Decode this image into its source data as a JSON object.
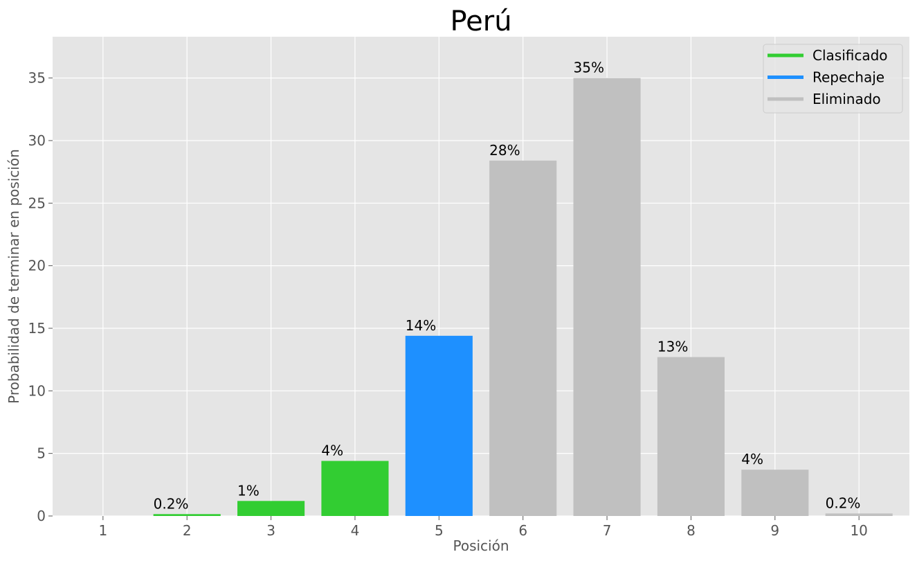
{
  "chart_data": {
    "type": "bar",
    "title": "Perú",
    "xlabel": "Posición",
    "ylabel": "Probabilidad de terminar en posición",
    "categories": [
      "1",
      "2",
      "3",
      "4",
      "5",
      "6",
      "7",
      "8",
      "9",
      "10"
    ],
    "values": [
      0,
      0.15,
      1.2,
      4.4,
      14.4,
      28.4,
      35.0,
      12.7,
      3.7,
      0.2
    ],
    "data_labels": [
      "",
      "0.2%",
      "1%",
      "4%",
      "14%",
      "28%",
      "35%",
      "13%",
      "4%",
      "0.2%"
    ],
    "status": [
      "Clasificado",
      "Clasificado",
      "Clasificado",
      "Clasificado",
      "Repechaje",
      "Eliminado",
      "Eliminado",
      "Eliminado",
      "Eliminado",
      "Eliminado"
    ],
    "ylim": [
      0,
      38.3
    ],
    "yticks": [
      0,
      5,
      10,
      15,
      20,
      25,
      30,
      35
    ],
    "grid": true,
    "legend_position": "top-right",
    "legend": [
      {
        "label": "Clasificado",
        "color": "#32cd32"
      },
      {
        "label": "Repechaje",
        "color": "#1e90ff"
      },
      {
        "label": "Eliminado",
        "color": "#c0c0c0"
      }
    ],
    "colors": {
      "Clasificado": "#32cd32",
      "Repechaje": "#1e90ff",
      "Eliminado": "#c0c0c0",
      "plot_background": "#e5e5e5",
      "grid": "#ffffff"
    }
  }
}
